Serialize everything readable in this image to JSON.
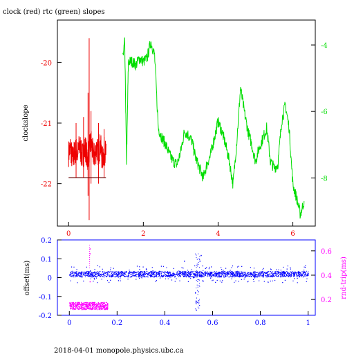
{
  "title": "clock (red) rtc (green) slopes",
  "footer": "2018-04-01 monopole.physics.ubc.ca",
  "colors": {
    "red": "#ee0000",
    "green": "#00dd00",
    "blue": "#0000ff",
    "magenta": "#ff00ff",
    "frame": "#000000",
    "darkline": "#660000"
  },
  "chart_data": [
    {
      "type": "line",
      "title": "clock (red) rtc (green) slopes",
      "ylabel": "clockslope",
      "y2label": "",
      "xlim": [
        -0.3,
        6.6
      ],
      "ylim": [
        -22.7,
        -19.3
      ],
      "y2lim": [
        -9.45,
        -3.25
      ],
      "xticks": [
        "0",
        "2",
        "4",
        "6"
      ],
      "xtick_values": [
        0,
        2,
        4,
        6
      ],
      "yticks": [
        "-20",
        "-21",
        "-22"
      ],
      "ytick_values": [
        -20,
        -21,
        -22
      ],
      "y2ticks": [
        "-4",
        "-6",
        "-8"
      ],
      "y2tick_values": [
        -4,
        -6,
        -8
      ],
      "grid": false,
      "series": [
        {
          "name": "clock",
          "color": "red",
          "axis": "left",
          "x": [
            0.0,
            0.05,
            0.1,
            0.15,
            0.2,
            0.25,
            0.3,
            0.35,
            0.4,
            0.45,
            0.5,
            0.55,
            0.6,
            0.65,
            0.7,
            0.75,
            0.8,
            0.85,
            0.9,
            0.95,
            1.0
          ],
          "y": [
            -21.5,
            -21.4,
            -21.6,
            -21.5,
            -21.45,
            -21.5,
            -21.35,
            -21.55,
            -21.5,
            -21.4,
            -21.6,
            -21.45,
            -21.3,
            -21.5,
            -21.55,
            -21.4,
            -21.5,
            -21.35,
            -21.6,
            -21.45,
            -21.5
          ],
          "spikes": [
            {
              "x": 0.55,
              "low": -22.6,
              "high": -19.6
            },
            {
              "x": 0.52,
              "low": -22.2,
              "high": -20.5
            },
            {
              "x": 0.6,
              "low": -22.0,
              "high": -20.8
            },
            {
              "x": 0.4,
              "low": -21.9,
              "high": -20.9
            },
            {
              "x": 0.2,
              "low": -21.9,
              "high": -21.0
            },
            {
              "x": 0.8,
              "low": -22.0,
              "high": -21.0
            },
            {
              "x": 0.95,
              "low": -21.9,
              "high": -21.1
            }
          ],
          "reference_line": {
            "x": [
              0.0,
              1.0
            ],
            "y": -21.9
          }
        },
        {
          "name": "rtc",
          "color": "green",
          "axis": "right",
          "x": [
            1.45,
            1.5,
            1.55,
            1.6,
            1.7,
            1.8,
            1.9,
            2.0,
            2.1,
            2.2,
            2.3,
            2.4,
            2.5,
            2.6,
            2.7,
            2.8,
            2.9,
            3.0,
            3.1,
            3.2,
            3.3,
            3.4,
            3.5,
            3.6,
            3.7,
            3.8,
            3.9,
            4.0,
            4.1,
            4.2,
            4.3,
            4.4,
            4.5,
            4.6,
            4.7,
            4.8,
            4.9,
            5.0,
            5.1,
            5.2,
            5.3,
            5.4,
            5.5,
            5.6,
            5.7,
            5.8,
            5.9,
            6.0,
            6.1,
            6.2,
            6.3
          ],
          "y": [
            -4.4,
            -3.9,
            -7.5,
            -4.5,
            -4.5,
            -4.6,
            -4.4,
            -4.5,
            -4.4,
            -3.9,
            -4.3,
            -6.5,
            -6.8,
            -7.0,
            -7.3,
            -7.5,
            -7.6,
            -7.2,
            -6.6,
            -6.7,
            -6.9,
            -7.4,
            -7.7,
            -8.0,
            -7.6,
            -7.3,
            -6.8,
            -6.3,
            -6.6,
            -7.0,
            -7.5,
            -8.2,
            -6.9,
            -5.3,
            -6.0,
            -6.6,
            -7.0,
            -7.5,
            -7.1,
            -6.8,
            -6.5,
            -7.5,
            -7.7,
            -7.6,
            -6.3,
            -5.8,
            -6.5,
            -8.2,
            -8.6,
            -9.1,
            -8.7
          ]
        }
      ]
    },
    {
      "type": "scatter",
      "ylabel": "offset(ms)",
      "y2label": "rnd-trip(ms)",
      "xlim": [
        -0.05,
        1.03
      ],
      "ylim": [
        -0.2,
        0.2
      ],
      "y2lim": [
        0.07,
        0.69
      ],
      "xticks": [
        "0",
        "0.2",
        "0.4",
        "0.6",
        "0.8",
        "1"
      ],
      "xtick_values": [
        0,
        0.2,
        0.4,
        0.6,
        0.8,
        1.0
      ],
      "yticks": [
        "0.2",
        "0.1",
        "0",
        "-0.1",
        "-0.2"
      ],
      "ytick_values": [
        0.2,
        0.1,
        0,
        -0.1,
        -0.2
      ],
      "y2ticks": [
        "0.6",
        "0.4",
        "0.2"
      ],
      "y2tick_values": [
        0.6,
        0.4,
        0.2
      ],
      "grid": false,
      "series": [
        {
          "name": "offset",
          "color": "blue",
          "axis": "left",
          "x_range": [
            0.0,
            1.0
          ],
          "y_center": 0.02,
          "y_spread": 0.03,
          "outliers": [
            {
              "x": 0.53,
              "y": -0.17
            },
            {
              "x": 0.54,
              "y": -0.12
            },
            {
              "x": 0.545,
              "y": 0.09
            },
            {
              "x": 0.55,
              "y": 0.12
            },
            {
              "x": 0.48,
              "y": 0.09
            }
          ]
        },
        {
          "name": "rnd-trip",
          "color": "magenta",
          "axis": "right",
          "x_range": [
            0.0,
            0.16
          ],
          "y_center": 0.15,
          "y_spread": 0.06,
          "outliers": [
            {
              "x": 0.085,
              "y": 0.62
            },
            {
              "x": 0.085,
              "y": 0.58
            },
            {
              "x": 0.085,
              "y": 0.35
            }
          ]
        }
      ]
    }
  ]
}
